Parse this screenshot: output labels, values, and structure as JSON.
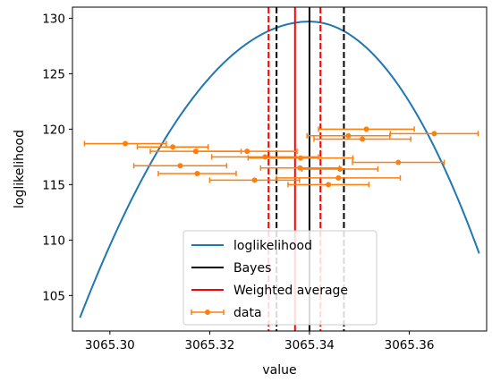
{
  "chart_data": {
    "type": "line",
    "xlabel": "value",
    "ylabel": "loglikelihood",
    "xlim": [
      3065.2925,
      3065.3755
    ],
    "ylim": [
      101.8,
      131.0
    ],
    "x_ticks": [
      "3065.30",
      "3065.32",
      "3065.34",
      "3065.36"
    ],
    "y_ticks": [
      "105",
      "110",
      "115",
      "120",
      "125",
      "130"
    ],
    "grid": false,
    "legend_position": "bottom-center",
    "curve": {
      "name": "loglikelihood",
      "color": "#1f77b4",
      "x_start": 3065.294,
      "x_end": 3065.374,
      "peak_x": 3065.34,
      "peak_y": 129.7,
      "y_at_start": 103.0,
      "y_at_end": 108.8
    },
    "vlines": [
      {
        "name": "Bayes",
        "x": 3065.34,
        "color": "#000000",
        "style": "solid"
      },
      {
        "name": "Bayes lower",
        "x": 3065.3334,
        "color": "#000000",
        "style": "dashed"
      },
      {
        "name": "Bayes upper",
        "x": 3065.3469,
        "color": "#000000",
        "style": "dashed"
      },
      {
        "name": "Weighted average",
        "x": 3065.3371,
        "color": "#ff0000",
        "style": "solid"
      },
      {
        "name": "Weighted average lower",
        "x": 3065.3318,
        "color": "#ff0000",
        "style": "dashed"
      },
      {
        "name": "Weighted average upper",
        "x": 3065.3422,
        "color": "#ff0000",
        "style": "dashed"
      }
    ],
    "data_series": {
      "name": "data",
      "color": "#ff7f0e",
      "points": [
        {
          "x": 3065.3031,
          "y": 118.7,
          "xerr": 0.0082
        },
        {
          "x": 3065.3126,
          "y": 118.4,
          "xerr": 0.0071
        },
        {
          "x": 3065.3172,
          "y": 118.0,
          "xerr": 0.0091
        },
        {
          "x": 3065.3141,
          "y": 116.7,
          "xerr": 0.0093
        },
        {
          "x": 3065.3175,
          "y": 116.0,
          "xerr": 0.0078
        },
        {
          "x": 3065.329,
          "y": 115.4,
          "xerr": 0.009
        },
        {
          "x": 3065.3275,
          "y": 118.0,
          "xerr": 0.01
        },
        {
          "x": 3065.3311,
          "y": 117.5,
          "xerr": 0.0107
        },
        {
          "x": 3065.3382,
          "y": 117.4,
          "xerr": 0.0105
        },
        {
          "x": 3065.3381,
          "y": 116.5,
          "xerr": 0.0079
        },
        {
          "x": 3065.3438,
          "y": 115.0,
          "xerr": 0.0081
        },
        {
          "x": 3065.3461,
          "y": 116.4,
          "xerr": 0.0076
        },
        {
          "x": 3065.3458,
          "y": 115.6,
          "xerr": 0.0124
        },
        {
          "x": 3065.3478,
          "y": 119.4,
          "xerr": 0.0083
        },
        {
          "x": 3065.3506,
          "y": 119.1,
          "xerr": 0.0097
        },
        {
          "x": 3065.3514,
          "y": 120.0,
          "xerr": 0.0096
        },
        {
          "x": 3065.3578,
          "y": 117.0,
          "xerr": 0.0092
        },
        {
          "x": 3065.365,
          "y": 119.6,
          "xerr": 0.0088
        }
      ]
    },
    "legend": [
      {
        "label": "loglikelihood",
        "kind": "line",
        "color": "#1f77b4"
      },
      {
        "label": "Bayes",
        "kind": "line",
        "color": "#000000"
      },
      {
        "label": "Weighted average",
        "kind": "line",
        "color": "#ff0000"
      },
      {
        "label": "data",
        "kind": "errorbar",
        "color": "#ff7f0e"
      }
    ]
  }
}
